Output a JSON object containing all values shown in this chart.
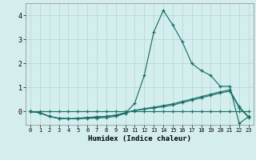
{
  "xlabel": "Humidex (Indice chaleur)",
  "ylabel": "",
  "background_color": "#d4eeee",
  "grid_color": "#b8d8d8",
  "line_color": "#1a7068",
  "xlim": [
    -0.5,
    23.5
  ],
  "ylim": [
    -0.55,
    4.5
  ],
  "yticks": [
    0,
    1,
    2,
    3,
    4
  ],
  "xticks": [
    0,
    1,
    2,
    3,
    4,
    5,
    6,
    7,
    8,
    9,
    10,
    11,
    12,
    13,
    14,
    15,
    16,
    17,
    18,
    19,
    20,
    21,
    22,
    23
  ],
  "series": [
    [
      0.0,
      -0.05,
      -0.2,
      -0.28,
      -0.3,
      -0.3,
      -0.28,
      -0.27,
      -0.25,
      -0.2,
      -0.08,
      0.35,
      1.5,
      3.3,
      4.2,
      3.6,
      2.9,
      2.0,
      1.7,
      1.5,
      1.05,
      1.05,
      -0.5,
      -0.2
    ],
    [
      0.0,
      -0.05,
      -0.2,
      -0.28,
      -0.3,
      -0.28,
      -0.25,
      -0.22,
      -0.2,
      -0.15,
      -0.05,
      0.05,
      0.12,
      0.18,
      0.25,
      0.32,
      0.42,
      0.52,
      0.62,
      0.72,
      0.82,
      0.9,
      0.2,
      -0.22
    ],
    [
      0.0,
      -0.05,
      -0.2,
      -0.28,
      -0.3,
      -0.28,
      -0.25,
      -0.22,
      -0.2,
      -0.15,
      -0.05,
      0.04,
      0.1,
      0.15,
      0.2,
      0.27,
      0.37,
      0.47,
      0.57,
      0.67,
      0.77,
      0.85,
      0.16,
      -0.24
    ],
    [
      0.0,
      0.0,
      0.0,
      0.0,
      0.0,
      0.0,
      0.0,
      0.0,
      0.0,
      0.0,
      0.0,
      0.0,
      0.0,
      0.0,
      0.0,
      0.0,
      0.0,
      0.0,
      0.0,
      0.0,
      0.0,
      0.0,
      0.0,
      0.0
    ]
  ]
}
